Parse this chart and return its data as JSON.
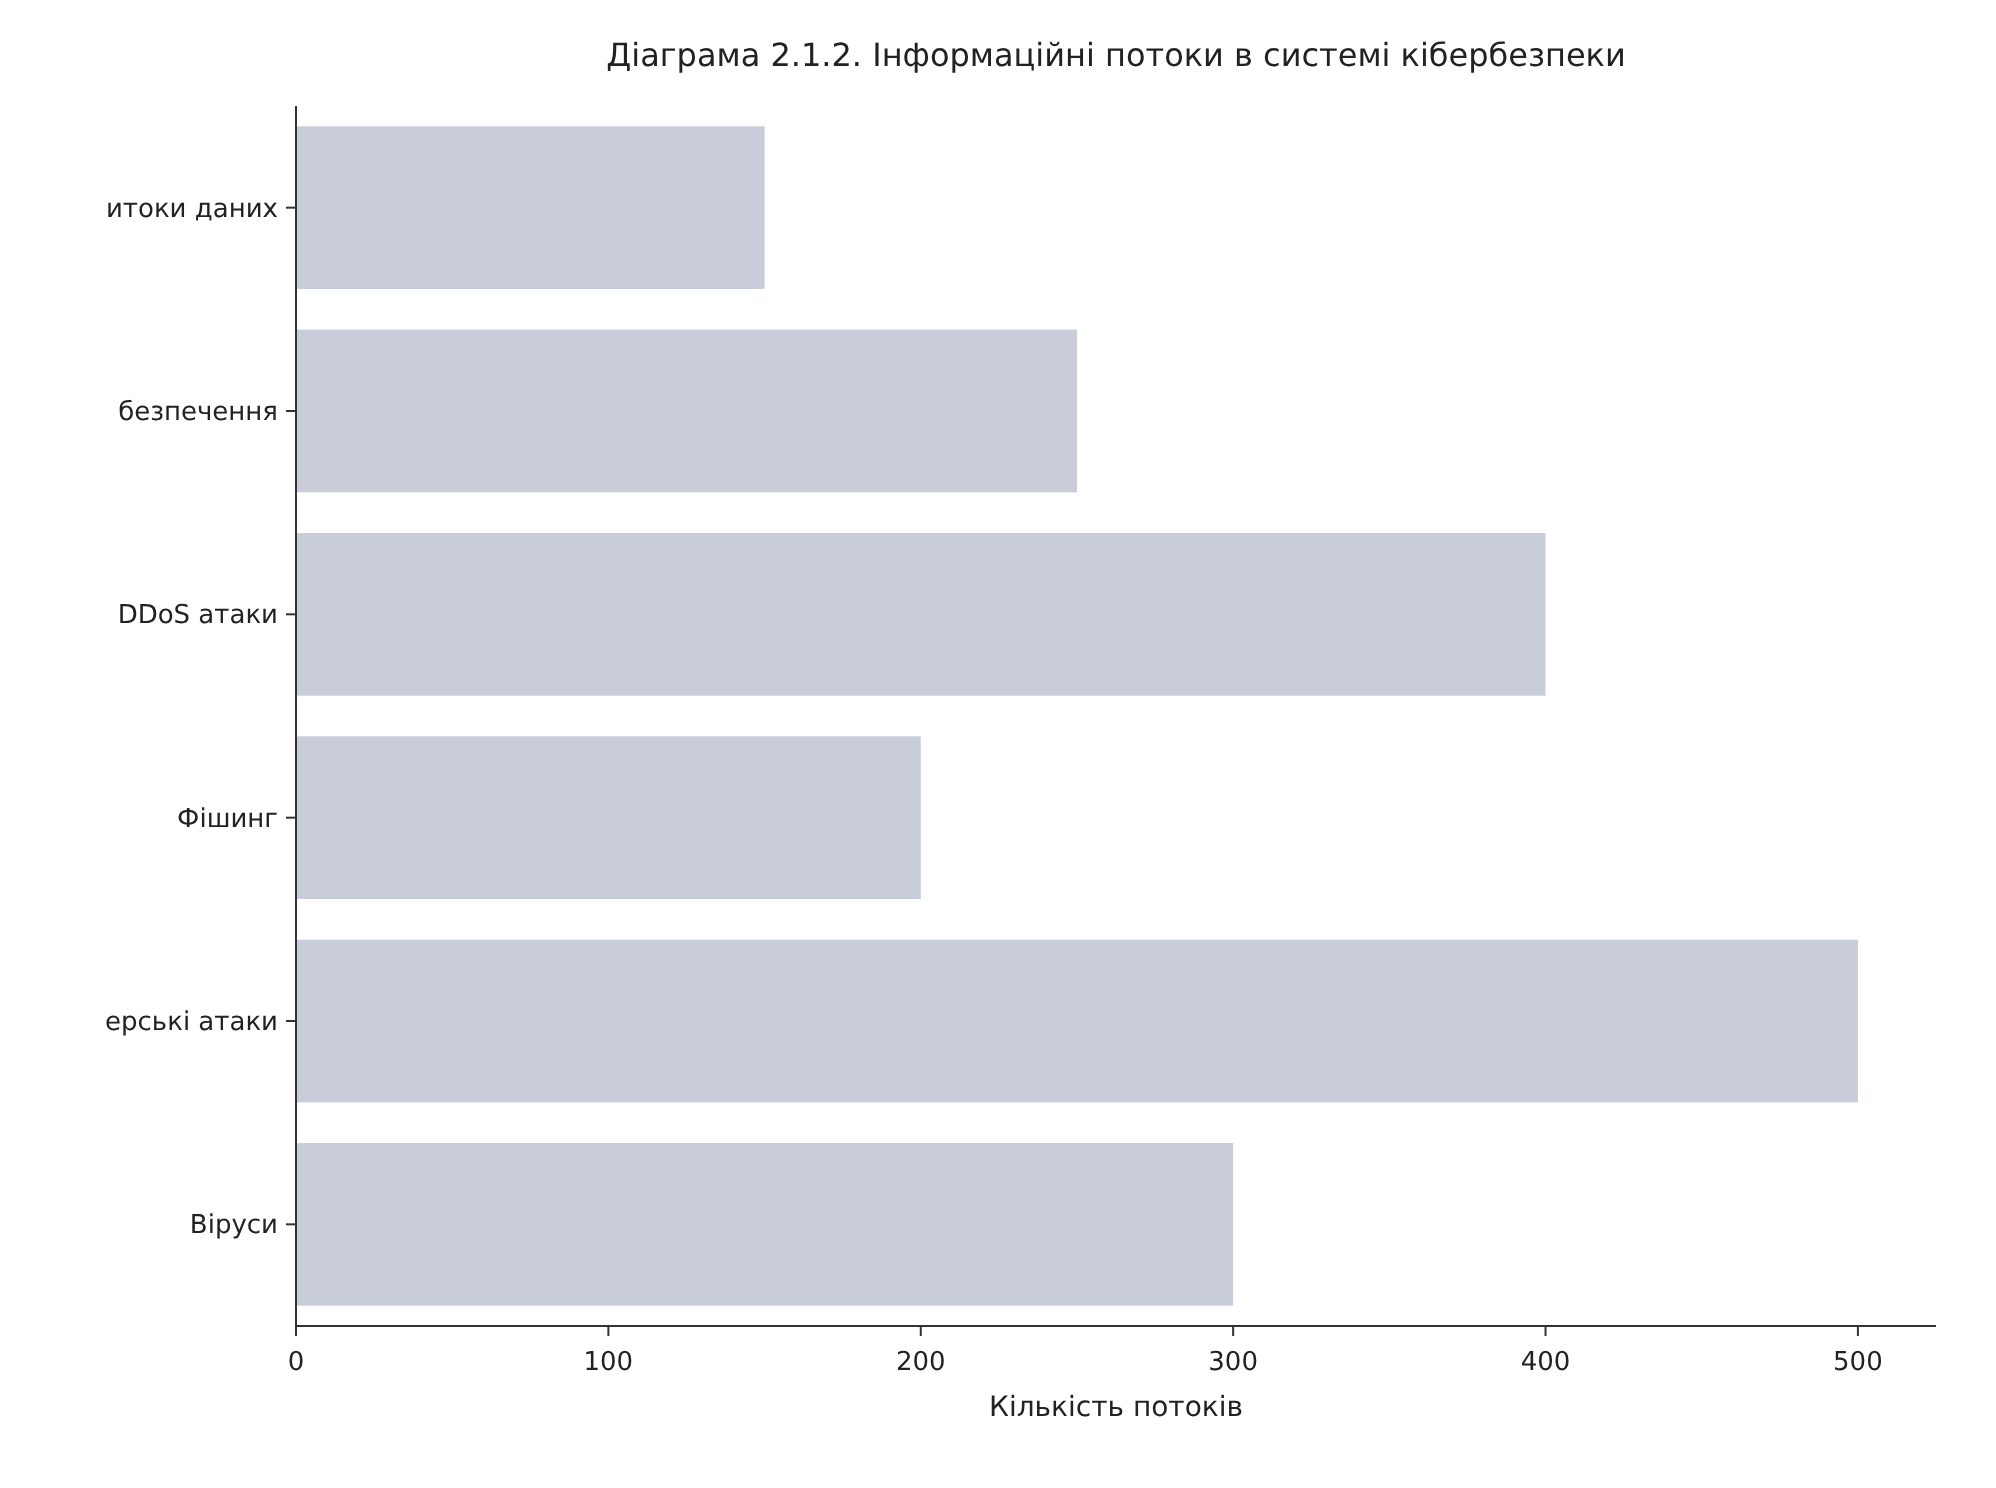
{
  "chart_data": {
    "type": "bar",
    "orientation": "horizontal",
    "title": "Діаграма 2.1.2. Інформаційні потоки в системі кібербезпеки",
    "xlabel": "Кількість потоків",
    "categories": [
      "итоки даних",
      "безпечення",
      "DDoS атаки",
      "Фішинг",
      "ерські атаки",
      "Віруси"
    ],
    "values": [
      150,
      250,
      400,
      200,
      500,
      300
    ],
    "color": "#c9ccd9",
    "xlim": [
      0,
      525
    ],
    "xticks": [
      0,
      100,
      200,
      300,
      400,
      500
    ],
    "grid": false
  }
}
